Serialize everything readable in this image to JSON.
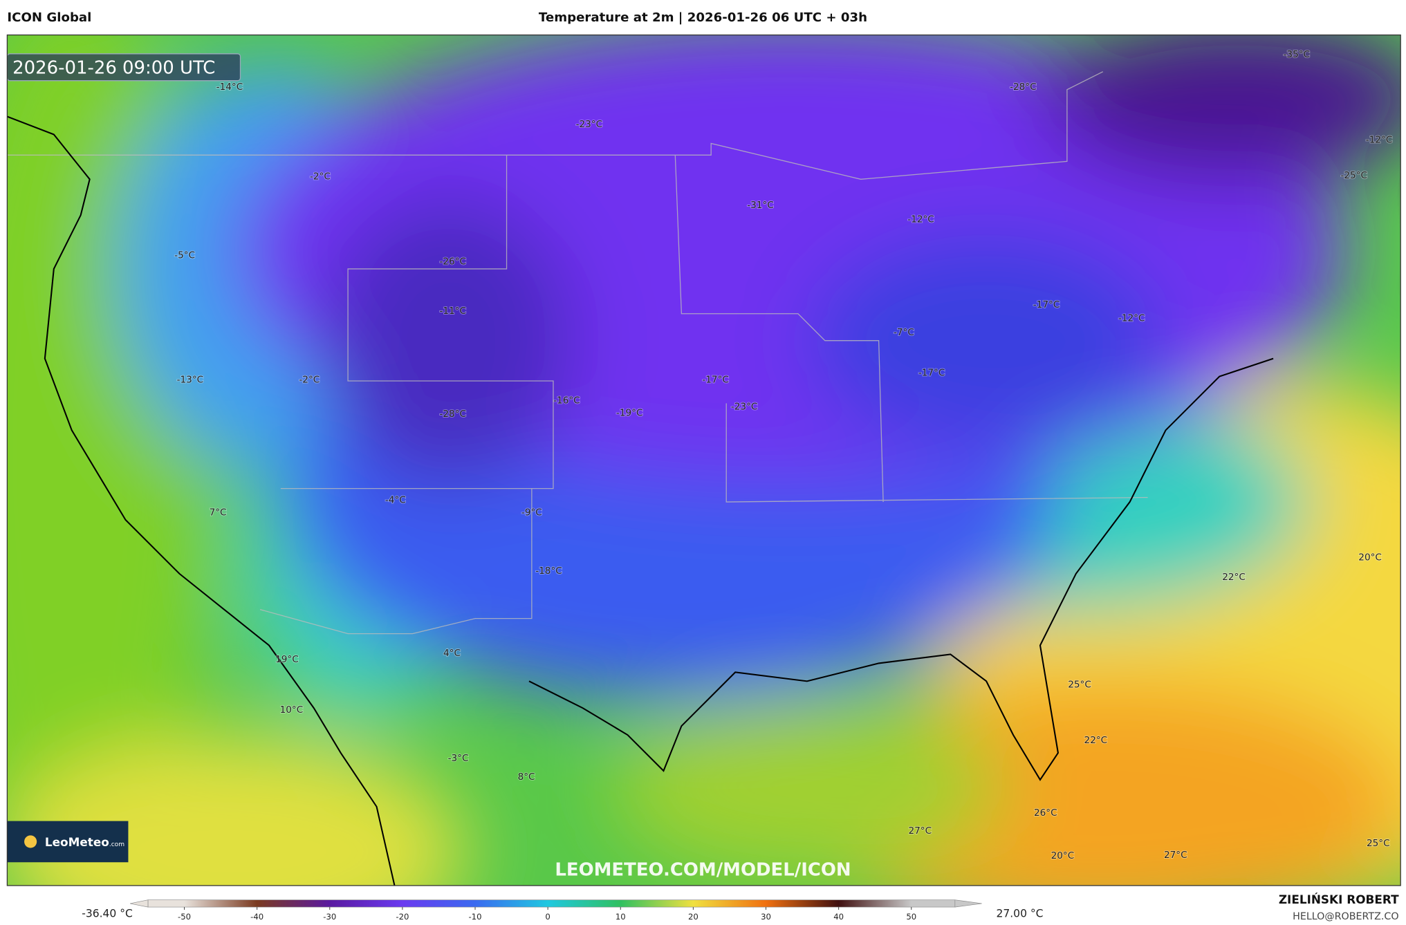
{
  "header": {
    "model": "ICON Global",
    "title": "Temperature at 2m | 2026-01-26 06 UTC + 03h"
  },
  "map": {
    "timestamp": "2026-01-26 09:00 UTC",
    "watermark": "LEOMETEO.COM/MODEL/ICON",
    "logo": "LeoMeteo",
    "logo_suffix": ".com",
    "labels": [
      "-14°C",
      "-23°C",
      "-28°C",
      "-35°C",
      "-12°C",
      "-25°C",
      "-2°C",
      "-31°C",
      "-12°C",
      "-5°C",
      "-26°C",
      "-11°C",
      "-17°C",
      "-12°C",
      "-7°C",
      "-17°C",
      "-13°C",
      "-2°C",
      "-17°C",
      "-23°C",
      "-16°C",
      "-19°C",
      "-28°C",
      "-4°C",
      "-9°C",
      "7°C",
      "-18°C",
      "22°C",
      "20°C",
      "19°C",
      "4°C",
      "10°C",
      "25°C",
      "22°C",
      "-3°C",
      "8°C",
      "26°C",
      "27°C",
      "25°C",
      "20°C",
      "27°C"
    ]
  },
  "colorbar": {
    "min_label": "-36.40 °C",
    "max_label": "27.00 °C",
    "range": [
      -55,
      56
    ],
    "ticks": [
      -50,
      -40,
      -30,
      -20,
      -10,
      0,
      10,
      20,
      30,
      40,
      50
    ],
    "colors": [
      "#e8e2dc",
      "#7a3a20",
      "#5a1aa0",
      "#6a3af0",
      "#3a6af0",
      "#20c8e0",
      "#30c060",
      "#f0e040",
      "#f07010",
      "#401010",
      "#c8c8c8"
    ]
  },
  "footer": {
    "author": "ZIELIŃSKI ROBERT",
    "email": "HELLO@ROBERTZ.CO"
  }
}
